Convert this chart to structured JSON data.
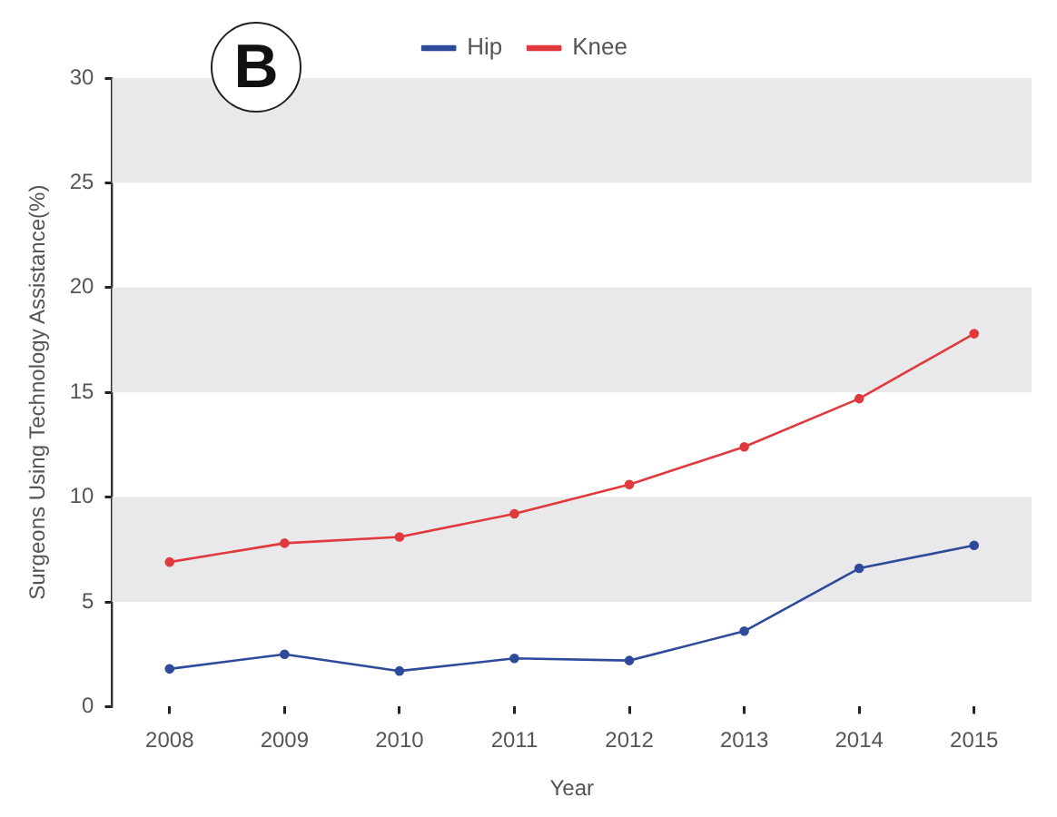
{
  "chart_data": {
    "type": "line",
    "xlabel": "Year",
    "ylabel": "Surgeons Using Technology Assistance(%)",
    "annotations": [
      "B"
    ],
    "categories": [
      "2008",
      "2009",
      "2010",
      "2011",
      "2012",
      "2013",
      "2014",
      "2015"
    ],
    "series": [
      {
        "name": "Hip",
        "color": "#2e4a9a",
        "values": [
          1.8,
          2.5,
          1.7,
          2.3,
          2.2,
          3.6,
          6.6,
          7.7
        ]
      },
      {
        "name": "Knee",
        "color": "#e03a3e",
        "values": [
          6.9,
          7.8,
          8.1,
          9.2,
          10.6,
          12.4,
          14.7,
          17.8
        ]
      }
    ],
    "ylim": [
      0,
      30
    ],
    "yticks": [
      0,
      5,
      10,
      15,
      20,
      25,
      30
    ],
    "bands": [
      {
        "axis": "y",
        "from": 5,
        "to": 10,
        "color": "#e9e9eb"
      },
      {
        "axis": "y",
        "from": 15,
        "to": 20,
        "color": "#e9e9eb"
      },
      {
        "axis": "y",
        "from": 25,
        "to": 30,
        "color": "#e9e9eb"
      }
    ],
    "grid": false,
    "legend": "top",
    "marker": "circle",
    "line_style": "solid"
  }
}
